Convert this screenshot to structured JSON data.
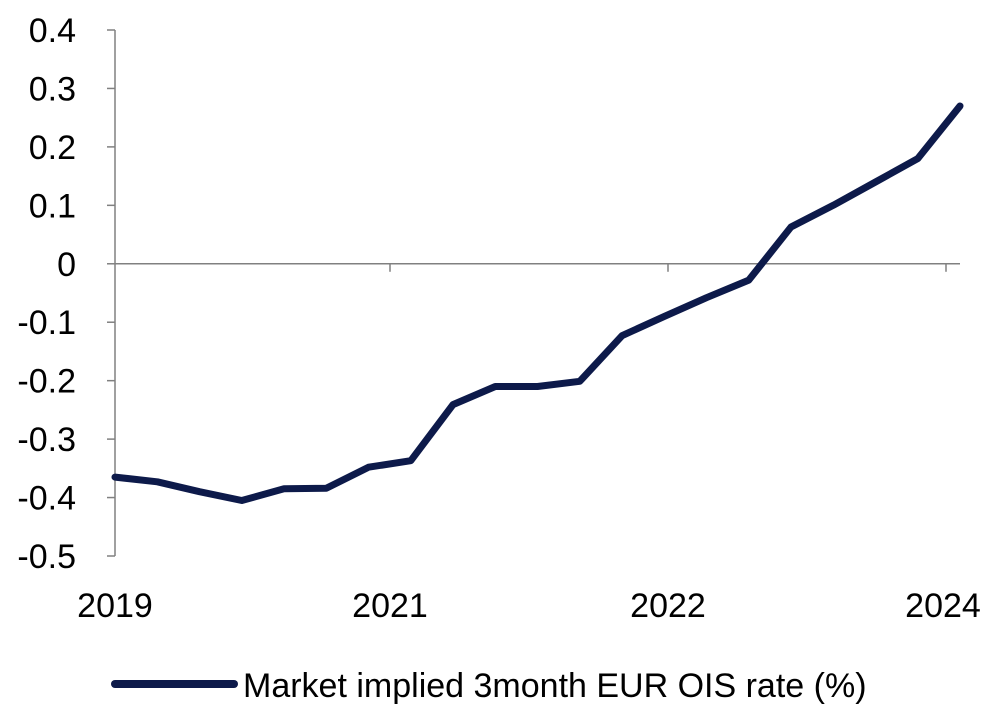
{
  "chart_data": {
    "type": "line",
    "title": "",
    "xlabel": "",
    "ylabel": "",
    "ylim": [
      -0.5,
      0.4
    ],
    "y_ticks": [
      "0.4",
      "0.3",
      "0.2",
      "0.1",
      "0",
      "-0.1",
      "-0.2",
      "-0.3",
      "-0.4",
      "-0.5"
    ],
    "x_tick_labels": [
      "2019",
      "2021",
      "2022",
      "2024"
    ],
    "grid": false,
    "legend_position": "bottom",
    "series": [
      {
        "name": "Market implied 3month EUR OIS rate (%)",
        "color": "#0d1a4a",
        "values": [
          -0.365,
          -0.373,
          -0.39,
          -0.405,
          -0.385,
          -0.384,
          -0.348,
          -0.337,
          -0.241,
          -0.21,
          -0.21,
          -0.201,
          -0.123,
          -0.09,
          -0.058,
          -0.028,
          0.063,
          0.1,
          0.14,
          0.18,
          0.27
        ]
      }
    ]
  }
}
